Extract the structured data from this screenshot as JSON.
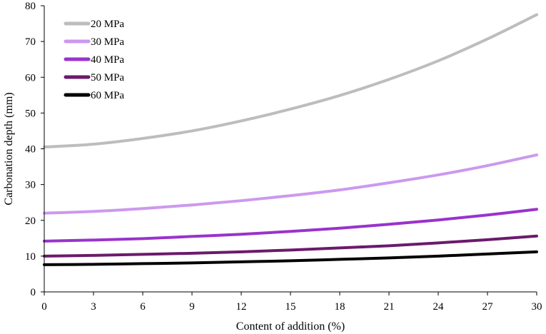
{
  "chart_data": {
    "type": "line",
    "title": "",
    "xlabel": "Content of addition (%)",
    "ylabel": "Carbonation depth (mm)",
    "xlim": [
      0,
      30
    ],
    "ylim": [
      0,
      80
    ],
    "xticks": [
      0,
      3,
      6,
      9,
      12,
      15,
      18,
      21,
      24,
      27,
      30
    ],
    "yticks": [
      0,
      10,
      20,
      30,
      40,
      50,
      60,
      70,
      80
    ],
    "grid": false,
    "legend_position": "top-left",
    "x": [
      0,
      3,
      6,
      9,
      12,
      15,
      18,
      21,
      24,
      27,
      30
    ],
    "series": [
      {
        "name": "20 MPa",
        "color": "#bdbdbd",
        "values": [
          40.5,
          41.3,
          42.9,
          45.0,
          47.8,
          51.1,
          54.9,
          59.4,
          64.6,
          70.7,
          77.5
        ]
      },
      {
        "name": "30 MPa",
        "color": "#cc99ee",
        "values": [
          22.0,
          22.5,
          23.3,
          24.3,
          25.5,
          26.9,
          28.5,
          30.5,
          32.7,
          35.3,
          38.3
        ]
      },
      {
        "name": "40 MPa",
        "color": "#9933cc",
        "values": [
          14.2,
          14.5,
          14.9,
          15.5,
          16.1,
          16.9,
          17.8,
          18.9,
          20.1,
          21.5,
          23.1
        ]
      },
      {
        "name": "50 MPa",
        "color": "#6b1a6b",
        "values": [
          10.0,
          10.2,
          10.5,
          10.8,
          11.2,
          11.7,
          12.3,
          12.9,
          13.7,
          14.6,
          15.6
        ]
      },
      {
        "name": "60 MPa",
        "color": "#000000",
        "values": [
          7.6,
          7.7,
          7.9,
          8.1,
          8.4,
          8.7,
          9.1,
          9.5,
          10.0,
          10.6,
          11.2
        ]
      }
    ]
  }
}
